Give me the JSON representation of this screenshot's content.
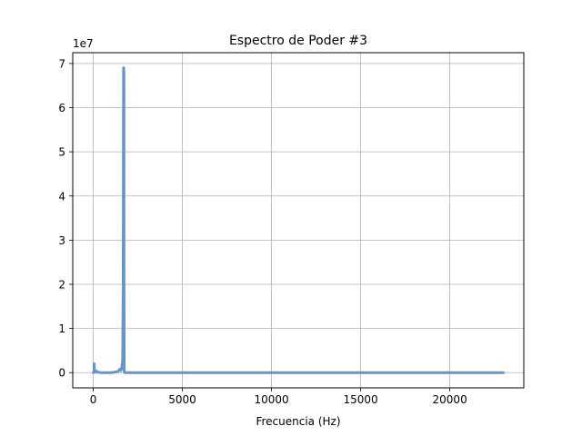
{
  "chart_data": {
    "type": "line",
    "title": "Espectro de Poder #3",
    "xlabel": "Frecuencia (Hz)",
    "ylabel": "",
    "y_offset_label": "1e7",
    "xlim": [
      -1150,
      24150
    ],
    "ylim": [
      -0.345,
      7.245
    ],
    "y_scale_factor": 10000000,
    "xticks": [
      0,
      5000,
      10000,
      15000,
      20000
    ],
    "xtick_labels": [
      "0",
      "5000",
      "10000",
      "15000",
      "20000"
    ],
    "yticks": [
      0,
      1,
      2,
      3,
      4,
      5,
      6,
      7
    ],
    "ytick_labels": [
      "0",
      "1",
      "2",
      "3",
      "4",
      "5",
      "6",
      "7"
    ],
    "grid": true,
    "series": [
      {
        "color": "#6496c8",
        "x": [
          0,
          40,
          55,
          70,
          90,
          110,
          160,
          220,
          300,
          400,
          600,
          800,
          1000,
          1200,
          1400,
          1500,
          1550,
          1600,
          1650,
          1680,
          1700,
          1710,
          1715,
          1720,
          1725,
          1735,
          1745,
          1760,
          1800,
          2000,
          3000,
          5000,
          10000,
          15000,
          20000,
          23000
        ],
        "y": [
          0.0,
          0.02,
          0.2,
          0.02,
          0.02,
          0.01,
          0.04,
          0.01,
          0.01,
          0.0,
          0.0,
          0.0,
          0.0,
          0.01,
          0.03,
          0.08,
          0.05,
          0.1,
          0.3,
          2.0,
          6.9,
          6.9,
          2.8,
          6.8,
          2.8,
          0.05,
          0.02,
          0.0,
          0.0,
          0.0,
          0.0,
          0.0,
          0.0,
          0.0,
          0.0,
          0.0
        ]
      }
    ]
  }
}
